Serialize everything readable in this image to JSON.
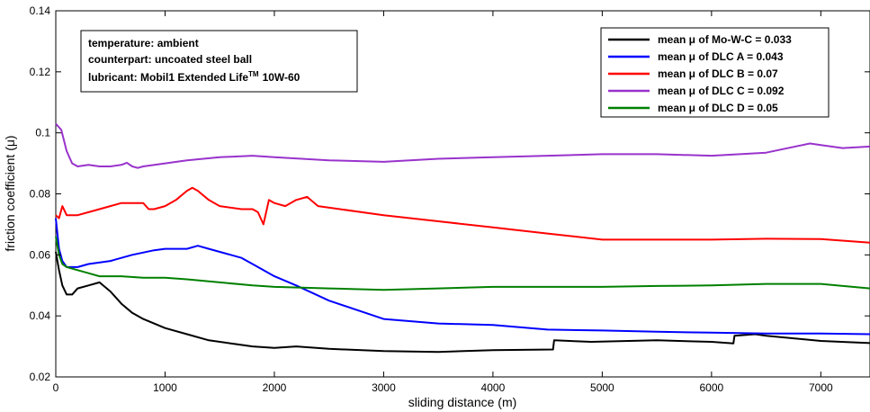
{
  "chart_data": {
    "type": "line",
    "xlabel": "sliding distance (m)",
    "ylabel": "friction coefficient (μ)",
    "xlim": [
      0,
      7450
    ],
    "ylim": [
      0.02,
      0.14
    ],
    "xticks": [
      0,
      1000,
      2000,
      3000,
      4000,
      5000,
      6000,
      7000
    ],
    "yticks": [
      0.02,
      0.04,
      0.06,
      0.08,
      0.1,
      0.12,
      0.14
    ],
    "xtick_labels": [
      "0",
      "1000",
      "2000",
      "3000",
      "4000",
      "5000",
      "6000",
      "7000"
    ],
    "ytick_labels": [
      "0.02",
      "0.04",
      "0.06",
      "0.08",
      "0.1",
      "0.12",
      "0.14"
    ],
    "grid": false,
    "legend_position": "top-right",
    "annotation": {
      "lines": [
        "temperature: ambient",
        "counterpart: uncoated steel ball",
        "lubricant: Mobil1 Extended Life",
        "TM",
        "10W-60"
      ]
    },
    "series": [
      {
        "name": "mean μ of Mo-W-C = 0.033",
        "color": "#000000",
        "x": [
          0,
          30,
          60,
          100,
          150,
          200,
          300,
          400,
          500,
          600,
          700,
          800,
          1000,
          1200,
          1400,
          1600,
          1800,
          2000,
          2200,
          2500,
          3000,
          3500,
          4000,
          4550,
          4560,
          4900,
          5500,
          6000,
          6200,
          6210,
          6400,
          6500,
          7000,
          7450
        ],
        "y": [
          0.061,
          0.055,
          0.05,
          0.047,
          0.047,
          0.049,
          0.05,
          0.051,
          0.048,
          0.044,
          0.041,
          0.039,
          0.036,
          0.034,
          0.032,
          0.031,
          0.03,
          0.0295,
          0.03,
          0.0292,
          0.0285,
          0.0282,
          0.0288,
          0.029,
          0.032,
          0.0315,
          0.032,
          0.0315,
          0.031,
          0.0335,
          0.034,
          0.0335,
          0.0318,
          0.0311
        ]
      },
      {
        "name": "mean μ of DLC A = 0.043",
        "color": "#0000ff",
        "x": [
          0,
          30,
          60,
          100,
          150,
          200,
          300,
          500,
          700,
          900,
          1000,
          1200,
          1300,
          1400,
          1600,
          1700,
          1800,
          2000,
          2200,
          2500,
          3000,
          3500,
          4000,
          4500,
          5000,
          5500,
          6000,
          6500,
          7000,
          7450
        ],
        "y": [
          0.072,
          0.062,
          0.058,
          0.056,
          0.056,
          0.056,
          0.057,
          0.058,
          0.06,
          0.0615,
          0.062,
          0.062,
          0.063,
          0.062,
          0.06,
          0.059,
          0.057,
          0.053,
          0.05,
          0.045,
          0.039,
          0.0375,
          0.037,
          0.0355,
          0.0352,
          0.0348,
          0.0345,
          0.0342,
          0.0342,
          0.034
        ]
      },
      {
        "name": "mean μ of DLC B = 0.07",
        "color": "#ff0000",
        "x": [
          0,
          30,
          60,
          100,
          200,
          300,
          400,
          500,
          600,
          700,
          800,
          850,
          900,
          1000,
          1100,
          1200,
          1250,
          1300,
          1400,
          1500,
          1700,
          1800,
          1850,
          1900,
          1950,
          2000,
          2100,
          2200,
          2300,
          2400,
          2600,
          3000,
          3500,
          4000,
          4500,
          5000,
          5500,
          6000,
          6500,
          7000,
          7450
        ],
        "y": [
          0.073,
          0.072,
          0.076,
          0.073,
          0.073,
          0.074,
          0.075,
          0.076,
          0.077,
          0.077,
          0.077,
          0.075,
          0.075,
          0.076,
          0.078,
          0.081,
          0.082,
          0.081,
          0.078,
          0.076,
          0.075,
          0.075,
          0.074,
          0.07,
          0.078,
          0.077,
          0.076,
          0.078,
          0.079,
          0.076,
          0.075,
          0.073,
          0.071,
          0.069,
          0.067,
          0.065,
          0.065,
          0.065,
          0.0653,
          0.0652,
          0.064
        ]
      },
      {
        "name": "mean μ of DLC C = 0.092",
        "color": "#9933cc",
        "x": [
          0,
          50,
          100,
          150,
          200,
          300,
          400,
          500,
          600,
          650,
          700,
          750,
          800,
          1000,
          1200,
          1500,
          1800,
          2000,
          2500,
          3000,
          3500,
          4000,
          4500,
          5000,
          5500,
          6000,
          6500,
          6900,
          7000,
          7200,
          7450
        ],
        "y": [
          0.103,
          0.101,
          0.094,
          0.09,
          0.089,
          0.0895,
          0.089,
          0.089,
          0.0895,
          0.0902,
          0.089,
          0.0885,
          0.089,
          0.09,
          0.091,
          0.092,
          0.0925,
          0.092,
          0.091,
          0.0905,
          0.0915,
          0.092,
          0.0925,
          0.093,
          0.093,
          0.0925,
          0.0935,
          0.0965,
          0.096,
          0.095,
          0.0955
        ]
      },
      {
        "name": "mean μ of DLC D = 0.05",
        "color": "#008000",
        "x": [
          0,
          30,
          60,
          100,
          200,
          300,
          400,
          600,
          800,
          1000,
          1200,
          1500,
          1800,
          2000,
          2500,
          3000,
          3500,
          4000,
          4500,
          5000,
          5500,
          6000,
          6500,
          7000,
          7450
        ],
        "y": [
          0.066,
          0.06,
          0.057,
          0.056,
          0.055,
          0.054,
          0.053,
          0.053,
          0.0525,
          0.0525,
          0.052,
          0.051,
          0.05,
          0.0495,
          0.049,
          0.0485,
          0.049,
          0.0495,
          0.0495,
          0.0495,
          0.0498,
          0.05,
          0.0505,
          0.0505,
          0.049
        ]
      }
    ]
  }
}
